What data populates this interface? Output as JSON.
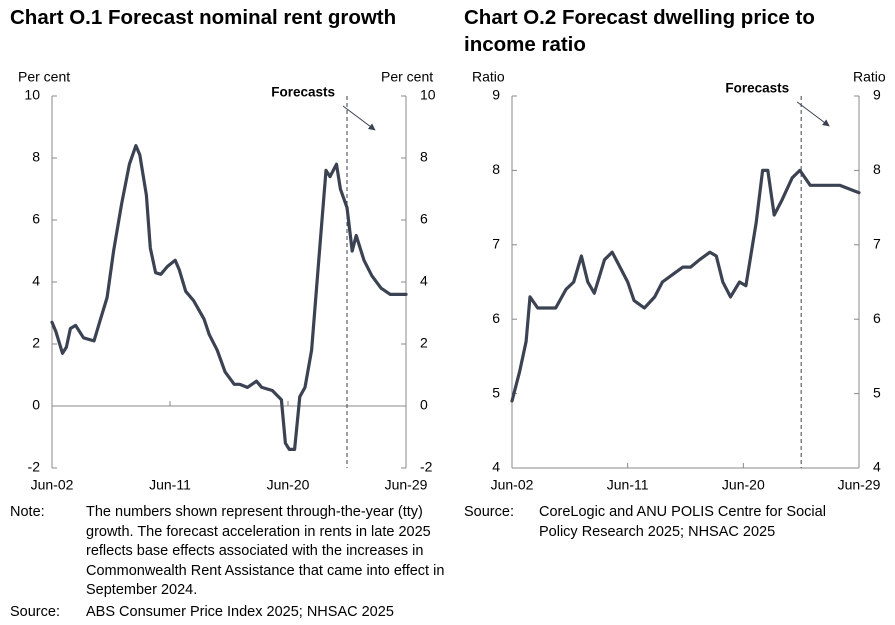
{
  "chart_data": [
    {
      "type": "line",
      "title": "Chart O.1 Forecast nominal rent growth",
      "ylabel": "Per cent",
      "y2label": "Per cent",
      "ylim": [
        -2,
        10
      ],
      "yticks": [
        -2,
        0,
        2,
        4,
        6,
        8,
        10
      ],
      "y2lim": [
        -2,
        10
      ],
      "y2ticks": [
        -2,
        0,
        2,
        4,
        6,
        8,
        10
      ],
      "xlim": [
        2002.5,
        2029.5
      ],
      "xticks": [
        {
          "value": 2002.5,
          "label": "Jun-02"
        },
        {
          "value": 2011.5,
          "label": "Jun-11"
        },
        {
          "value": 2020.5,
          "label": "Jun-20"
        },
        {
          "value": 2029.5,
          "label": "Jun-29"
        }
      ],
      "x": [
        2002.5,
        2002.8,
        2003.3,
        2003.6,
        2003.9,
        2004.3,
        2004.9,
        2005.7,
        2006.2,
        2006.7,
        2007.2,
        2007.8,
        2008.4,
        2008.9,
        2009.2,
        2009.7,
        2010.0,
        2010.4,
        2010.8,
        2011.3,
        2011.9,
        2012.2,
        2012.7,
        2013.3,
        2014.1,
        2014.5,
        2015.1,
        2015.7,
        2016.4,
        2016.8,
        2017.4,
        2018.1,
        2018.5,
        2019.3,
        2020.0,
        2020.3,
        2020.6,
        2021.0,
        2021.4,
        2021.8,
        2022.3,
        2022.9,
        2023.4,
        2023.7,
        2024.2,
        2024.5,
        2025.0,
        2025.4,
        2025.7,
        2026.3,
        2026.9,
        2027.6,
        2028.3,
        2029.5
      ],
      "series": [
        {
          "color": "#3b4252",
          "values": [
            2.7,
            2.4,
            1.7,
            1.9,
            2.5,
            2.6,
            2.2,
            2.1,
            2.8,
            3.5,
            5.0,
            6.5,
            7.8,
            8.4,
            8.1,
            6.8,
            5.1,
            4.3,
            4.25,
            4.5,
            4.7,
            4.4,
            3.7,
            3.4,
            2.8,
            2.3,
            1.8,
            1.1,
            0.7,
            0.7,
            0.6,
            0.8,
            0.6,
            0.5,
            0.2,
            -1.2,
            -1.4,
            -1.4,
            0.3,
            0.6,
            1.8,
            5.0,
            7.6,
            7.4,
            7.8,
            7.0,
            6.4,
            5.0,
            5.5,
            4.7,
            4.2,
            3.8,
            3.6,
            3.6
          ]
        }
      ],
      "forecast_start": 2025.0,
      "annotation": "Forecasts",
      "notes": [
        {
          "label": "Note:",
          "text": "The numbers shown represent through-the-year (tty) growth. The forecast acceleration in rents in late 2025 reflects base effects associated with the increases in Commonwealth Rent Assistance that came into effect in September 2024."
        },
        {
          "label": "Source:",
          "text": "ABS Consumer Price Index 2025; NHSAC 2025"
        }
      ]
    },
    {
      "type": "line",
      "title": "Chart O.2 Forecast dwelling price to income ratio",
      "ylabel": "Ratio",
      "y2label": "Ratio",
      "ylim": [
        4,
        9
      ],
      "yticks": [
        4,
        5,
        6,
        7,
        8,
        9
      ],
      "y2lim": [
        4,
        9
      ],
      "y2ticks": [
        4,
        5,
        6,
        7,
        8,
        9
      ],
      "xlim": [
        2002.5,
        2029.5
      ],
      "xticks": [
        {
          "value": 2002.5,
          "label": "Jun-02"
        },
        {
          "value": 2011.5,
          "label": "Jun-11"
        },
        {
          "value": 2020.5,
          "label": "Jun-20"
        },
        {
          "value": 2029.5,
          "label": "Jun-29"
        }
      ],
      "x": [
        2002.5,
        2003.1,
        2003.6,
        2003.9,
        2004.5,
        2005.3,
        2005.9,
        2006.7,
        2007.3,
        2007.9,
        2008.4,
        2008.9,
        2009.7,
        2010.3,
        2010.9,
        2011.5,
        2012.0,
        2012.8,
        2013.6,
        2014.2,
        2015.0,
        2015.8,
        2016.4,
        2017.1,
        2017.9,
        2018.4,
        2018.9,
        2019.5,
        2020.2,
        2020.7,
        2021.5,
        2022.0,
        2022.4,
        2022.9,
        2023.5,
        2024.3,
        2024.9,
        2025.7,
        2026.9,
        2028.0,
        2029.5
      ],
      "series": [
        {
          "color": "#3b4252",
          "values": [
            4.9,
            5.3,
            5.7,
            6.3,
            6.15,
            6.15,
            6.15,
            6.4,
            6.5,
            6.85,
            6.5,
            6.35,
            6.8,
            6.9,
            6.7,
            6.5,
            6.25,
            6.15,
            6.3,
            6.5,
            6.6,
            6.7,
            6.7,
            6.8,
            6.9,
            6.85,
            6.5,
            6.3,
            6.5,
            6.45,
            7.3,
            8.0,
            8.0,
            7.4,
            7.6,
            7.9,
            8.0,
            7.8,
            7.8,
            7.8,
            7.7
          ]
        }
      ],
      "forecast_start": 2025.0,
      "annotation": "Forecasts",
      "notes": [
        {
          "label": "Source:",
          "text": "CoreLogic and ANU POLIS Centre for Social Policy Research 2025; NHSAC 2025"
        }
      ]
    }
  ]
}
